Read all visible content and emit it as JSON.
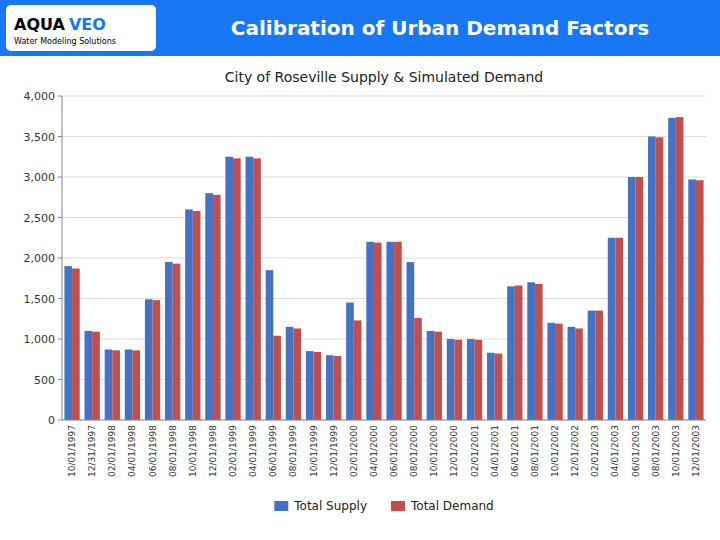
{
  "chart_data": {
    "type": "bar",
    "title": "City of Roseville Supply & Simulated Demand",
    "subtitle": "Calibration of Urban Demand Factors",
    "annotations": [
      "AQUA",
      "VEO",
      "Water Modeling Solutions"
    ],
    "categories": [
      "10/01/1997",
      "12/31/1997",
      "02/01/1998",
      "04/01/1998",
      "06/01/1998",
      "08/01/1998",
      "10/01/1998",
      "12/01/1998",
      "02/01/1999",
      "04/01/1999",
      "06/01/1999",
      "08/01/1999",
      "10/01/1999",
      "12/01/1999",
      "02/01/2000",
      "04/01/2000",
      "06/01/2000",
      "08/01/2000",
      "10/01/2000",
      "12/01/2000",
      "02/01/2001",
      "04/01/2001",
      "06/01/2001",
      "08/01/2001",
      "10/01/2002",
      "12/01/2002",
      "02/01/2003",
      "04/01/2003",
      "06/01/2003",
      "08/01/2003",
      "10/01/2003",
      "12/01/2003"
    ],
    "series": [
      {
        "name": "Total Supply",
        "color": "#4472C4",
        "values": [
          1900,
          1100,
          870,
          870,
          1490,
          1950,
          2600,
          2800,
          3250,
          3250,
          1850,
          1150,
          850,
          800,
          1450,
          2200,
          2200,
          1950,
          1100,
          1000,
          1000,
          830,
          1650,
          1700,
          1200,
          1150,
          1350,
          2250,
          3000,
          3500,
          3730,
          2970
        ]
      },
      {
        "name": "Total Demand",
        "color": "#C0504D",
        "values": [
          1870,
          1090,
          860,
          860,
          1480,
          1930,
          2580,
          2780,
          3230,
          3230,
          1040,
          1130,
          840,
          790,
          1230,
          2190,
          2200,
          1260,
          1090,
          990,
          990,
          820,
          1660,
          1680,
          1190,
          1130,
          1350,
          2250,
          3000,
          3490,
          3740,
          2960
        ]
      }
    ],
    "ylim": [
      0,
      4000
    ],
    "yticks": [
      0,
      500,
      {
        "value": 1000,
        "label": "1,000"
      },
      {
        "value": 1500,
        "label": "1,500"
      },
      {
        "value": 2000,
        "label": "2,000"
      },
      {
        "value": 2500,
        "label": "2,500"
      },
      {
        "value": 3000,
        "label": "3,000"
      },
      {
        "value": 3500,
        "label": "3,500"
      },
      {
        "value": 4000,
        "label": "4,000"
      }
    ],
    "grid": true,
    "legend": "bottom"
  }
}
